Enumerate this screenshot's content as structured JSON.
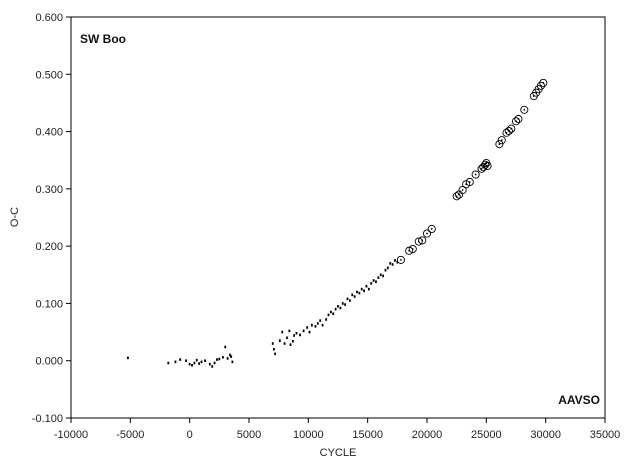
{
  "chart_data": {
    "type": "scatter",
    "title": "",
    "xlabel": "CYCLE",
    "ylabel": "O-C",
    "xlim": [
      -10000,
      35000
    ],
    "ylim": [
      -0.1,
      0.6
    ],
    "xticks": [
      -10000,
      -5000,
      0,
      5000,
      10000,
      15000,
      20000,
      25000,
      30000,
      35000
    ],
    "yticks": [
      -0.1,
      0.0,
      0.1,
      0.2,
      0.3,
      0.4,
      0.5,
      0.6
    ],
    "xtick_labels": [
      "-10000",
      "-5000",
      "0",
      "5000",
      "10000",
      "15000",
      "20000",
      "25000",
      "30000",
      "35000"
    ],
    "ytick_labels": [
      "-0.100",
      "0.000",
      "0.100",
      "0.200",
      "0.300",
      "0.400",
      "0.500",
      "0.600"
    ],
    "grid": false,
    "legend": "none",
    "annotations": [
      {
        "text": "SW Boo",
        "position": "top-left"
      },
      {
        "text": "AAVSO",
        "position": "bottom-right"
      }
    ],
    "series": [
      {
        "marker": "dot",
        "color": "#000000",
        "points": [
          [
            -5200,
            0.005
          ],
          [
            -1800,
            -0.004
          ],
          [
            -1200,
            -0.002
          ],
          [
            -800,
            0.002
          ],
          [
            -300,
            0.0
          ],
          [
            0,
            -0.006
          ],
          [
            200,
            -0.008
          ],
          [
            400,
            -0.004
          ],
          [
            600,
            0.001
          ],
          [
            800,
            -0.005
          ],
          [
            1000,
            -0.002
          ],
          [
            1300,
            0.0
          ],
          [
            1700,
            -0.006
          ],
          [
            1900,
            -0.01
          ],
          [
            2100,
            -0.004
          ],
          [
            2300,
            0.002
          ],
          [
            2500,
            0.003
          ],
          [
            2800,
            0.006
          ],
          [
            3000,
            0.024
          ],
          [
            3200,
            0.004
          ],
          [
            3400,
            0.01
          ],
          [
            3500,
            0.007
          ],
          [
            3600,
            -0.002
          ],
          [
            7000,
            0.03
          ],
          [
            7100,
            0.02
          ],
          [
            7200,
            0.012
          ],
          [
            7600,
            0.035
          ],
          [
            7800,
            0.05
          ],
          [
            8000,
            0.03
          ],
          [
            8200,
            0.04
          ],
          [
            8400,
            0.052
          ],
          [
            8500,
            0.028
          ],
          [
            8700,
            0.034
          ],
          [
            8800,
            0.044
          ],
          [
            9000,
            0.048
          ],
          [
            9300,
            0.045
          ],
          [
            9600,
            0.052
          ],
          [
            9900,
            0.058
          ],
          [
            10100,
            0.05
          ],
          [
            10300,
            0.062
          ],
          [
            10600,
            0.06
          ],
          [
            10800,
            0.065
          ],
          [
            11000,
            0.07
          ],
          [
            11200,
            0.062
          ],
          [
            11500,
            0.072
          ],
          [
            11700,
            0.08
          ],
          [
            11900,
            0.085
          ],
          [
            12100,
            0.082
          ],
          [
            12300,
            0.09
          ],
          [
            12500,
            0.095
          ],
          [
            12700,
            0.092
          ],
          [
            12900,
            0.1
          ],
          [
            13100,
            0.098
          ],
          [
            13300,
            0.108
          ],
          [
            13500,
            0.105
          ],
          [
            13700,
            0.115
          ],
          [
            13900,
            0.112
          ],
          [
            14100,
            0.12
          ],
          [
            14300,
            0.118
          ],
          [
            14500,
            0.125
          ],
          [
            14700,
            0.122
          ],
          [
            14900,
            0.13
          ],
          [
            15100,
            0.125
          ],
          [
            15300,
            0.135
          ],
          [
            15500,
            0.14
          ],
          [
            15700,
            0.138
          ],
          [
            15900,
            0.145
          ],
          [
            16100,
            0.15
          ],
          [
            16300,
            0.148
          ],
          [
            16500,
            0.158
          ],
          [
            16700,
            0.162
          ],
          [
            16900,
            0.17
          ],
          [
            17100,
            0.168
          ],
          [
            17300,
            0.175
          ],
          [
            17500,
            0.172
          ]
        ]
      },
      {
        "marker": "circled-dot",
        "color": "#000000",
        "points": [
          [
            17800,
            0.176
          ],
          [
            18500,
            0.192
          ],
          [
            18800,
            0.195
          ],
          [
            19300,
            0.208
          ],
          [
            19600,
            0.21
          ],
          [
            20000,
            0.222
          ],
          [
            20400,
            0.23
          ],
          [
            22500,
            0.287
          ],
          [
            22700,
            0.29
          ],
          [
            23000,
            0.298
          ],
          [
            23300,
            0.308
          ],
          [
            23600,
            0.312
          ],
          [
            24100,
            0.325
          ],
          [
            24600,
            0.335
          ],
          [
            24750,
            0.338
          ],
          [
            24900,
            0.342
          ],
          [
            25000,
            0.345
          ],
          [
            25100,
            0.34
          ],
          [
            26100,
            0.378
          ],
          [
            26300,
            0.385
          ],
          [
            26700,
            0.398
          ],
          [
            26900,
            0.401
          ],
          [
            27100,
            0.405
          ],
          [
            27500,
            0.418
          ],
          [
            27700,
            0.422
          ],
          [
            28200,
            0.438
          ],
          [
            29000,
            0.462
          ],
          [
            29200,
            0.468
          ],
          [
            29400,
            0.474
          ],
          [
            29600,
            0.48
          ],
          [
            29800,
            0.485
          ]
        ]
      }
    ]
  }
}
